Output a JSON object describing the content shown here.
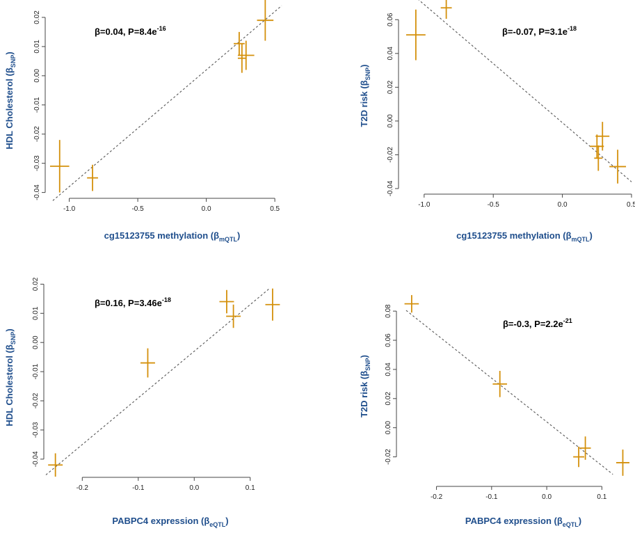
{
  "colors": {
    "point": "#D4900B",
    "axis_title": "#1F4E8C",
    "fit_line": "#555555",
    "axis": "#444444"
  },
  "chart_data": [
    {
      "type": "scatter",
      "title": "",
      "annotation": {
        "base": "β=0.04, P=8.4e",
        "exp": "-16"
      },
      "xlabel": {
        "main": "cg15123755 methylation (β",
        "sub": "mQTL",
        "tail": ")"
      },
      "ylabel": {
        "main": "HDL Cholesterol (β",
        "sub": "SNP",
        "tail": ")"
      },
      "xlim": [
        -1.15,
        0.55
      ],
      "ylim": [
        -0.042,
        0.025
      ],
      "xticks": [
        -1.0,
        -0.5,
        0.0,
        0.5
      ],
      "xtick_labels": [
        "-1.0",
        "-0.5",
        "0.0",
        "0.5"
      ],
      "yticks": [
        -0.04,
        -0.03,
        -0.02,
        -0.01,
        0.0,
        0.01,
        0.02
      ],
      "ytick_labels": [
        "-0.04",
        "-0.03",
        "-0.02",
        "-0.01",
        "0.00",
        "0.01",
        "0.02"
      ],
      "fit_slope": 0.04,
      "fit_intercept": 0.002,
      "fit_x": [
        -1.12,
        0.55
      ],
      "points": [
        {
          "x": -1.07,
          "y": -0.031,
          "xerr": 0.07,
          "yerr": 0.009
        },
        {
          "x": -0.83,
          "y": -0.035,
          "xerr": 0.04,
          "yerr": 0.0045
        },
        {
          "x": 0.24,
          "y": 0.011,
          "xerr": 0.04,
          "yerr": 0.004
        },
        {
          "x": 0.26,
          "y": 0.006,
          "xerr": 0.03,
          "yerr": 0.005
        },
        {
          "x": 0.29,
          "y": 0.007,
          "xerr": 0.06,
          "yerr": 0.005
        },
        {
          "x": 0.43,
          "y": 0.019,
          "xerr": 0.06,
          "yerr": 0.007
        }
      ]
    },
    {
      "type": "scatter",
      "title": "",
      "annotation": {
        "base": "β=-0.07, P=3.1e",
        "exp": "-18"
      },
      "xlabel": {
        "main": "cg15123755 methylation (β",
        "sub": "mQTL",
        "tail": ")"
      },
      "ylabel": {
        "main": "T2D risk (β",
        "sub": "SNP",
        "tail": ")"
      },
      "xlim": [
        -1.15,
        0.5
      ],
      "ylim": [
        -0.04,
        0.07
      ],
      "xticks": [
        -1.0,
        -0.5,
        0.0,
        0.5
      ],
      "xtick_labels": [
        "-1.0",
        "-0.5",
        "0.0",
        "0.5"
      ],
      "yticks": [
        -0.04,
        -0.02,
        0.0,
        0.02,
        0.04,
        0.06
      ],
      "ytick_labels": [
        "-0.04",
        "-0.02",
        "0.00",
        "0.02",
        "0.04",
        "0.06"
      ],
      "fit_slope": -0.07,
      "fit_intercept": -0.001,
      "fit_x": [
        -1.07,
        0.5
      ],
      "points": [
        {
          "x": -1.06,
          "y": 0.051,
          "xerr": 0.07,
          "yerr": 0.015
        },
        {
          "x": -0.84,
          "y": 0.067,
          "xerr": 0.04,
          "yerr": 0.0065
        },
        {
          "x": 0.25,
          "y": -0.015,
          "xerr": 0.05,
          "yerr": 0.007
        },
        {
          "x": 0.26,
          "y": -0.022,
          "xerr": 0.03,
          "yerr": 0.0075
        },
        {
          "x": 0.29,
          "y": -0.009,
          "xerr": 0.05,
          "yerr": 0.0085
        },
        {
          "x": 0.4,
          "y": -0.027,
          "xerr": 0.06,
          "yerr": 0.01
        }
      ]
    },
    {
      "type": "scatter",
      "title": "",
      "annotation": {
        "base": "β=0.16, P=3.46e",
        "exp": "-18"
      },
      "xlabel": {
        "main": "PABPC4 expression (β",
        "sub": "eQTL",
        "tail": ")"
      },
      "ylabel": {
        "main": "HDL Cholesterol (β",
        "sub": "SNP",
        "tail": ")"
      },
      "xlim": [
        -0.26,
        0.15
      ],
      "ylim": [
        -0.046,
        0.022
      ],
      "xticks": [
        -0.2,
        -0.1,
        0.0,
        0.1
      ],
      "xtick_labels": [
        "-0.2",
        "-0.1",
        "0.0",
        "0.1"
      ],
      "yticks": [
        -0.04,
        -0.03,
        -0.02,
        -0.01,
        0.0,
        0.01,
        0.02
      ],
      "ytick_labels": [
        "-0.04",
        "-0.03",
        "-0.02",
        "-0.01",
        "0.00",
        "0.01",
        "0.02"
      ],
      "fit_slope": 0.16,
      "fit_intercept": -0.003,
      "fit_x": [
        -0.265,
        0.133
      ],
      "points": [
        {
          "x": -0.248,
          "y": -0.042,
          "xerr": 0.013,
          "yerr": 0.004
        },
        {
          "x": -0.083,
          "y": -0.007,
          "xerr": 0.013,
          "yerr": 0.005
        },
        {
          "x": 0.058,
          "y": 0.014,
          "xerr": 0.013,
          "yerr": 0.004
        },
        {
          "x": 0.07,
          "y": 0.009,
          "xerr": 0.013,
          "yerr": 0.004
        },
        {
          "x": 0.14,
          "y": 0.013,
          "xerr": 0.013,
          "yerr": 0.0055
        }
      ]
    },
    {
      "type": "scatter",
      "title": "",
      "annotation": {
        "base": "β=-0.3, P=2.2e",
        "exp": "-21"
      },
      "xlabel": {
        "main": "PABPC4 expression (β",
        "sub": "eQTL",
        "tail": ")"
      },
      "ylabel": {
        "main": "T2D risk (β",
        "sub": "SNP",
        "tail": ")"
      },
      "xlim": [
        -0.26,
        0.15
      ],
      "ylim": [
        -0.035,
        0.092
      ],
      "xticks": [
        -0.2,
        -0.1,
        0.0,
        0.1
      ],
      "xtick_labels": [
        "-0.2",
        "-0.1",
        "0.0",
        "0.1"
      ],
      "yticks": [
        -0.02,
        0.0,
        0.02,
        0.04,
        0.06,
        0.08
      ],
      "ytick_labels": [
        "-0.02",
        "0.00",
        "0.02",
        "0.04",
        "0.06",
        "0.08"
      ],
      "fit_slope": -0.3,
      "fit_intercept": 0.004,
      "fit_x": [
        -0.255,
        0.12
      ],
      "points": [
        {
          "x": -0.245,
          "y": 0.085,
          "xerr": 0.013,
          "yerr": 0.006
        },
        {
          "x": -0.085,
          "y": 0.03,
          "xerr": 0.013,
          "yerr": 0.009
        },
        {
          "x": 0.058,
          "y": -0.02,
          "xerr": 0.01,
          "yerr": 0.007
        },
        {
          "x": 0.07,
          "y": -0.014,
          "xerr": 0.01,
          "yerr": 0.008
        },
        {
          "x": 0.138,
          "y": -0.024,
          "xerr": 0.012,
          "yerr": 0.009
        }
      ]
    }
  ]
}
